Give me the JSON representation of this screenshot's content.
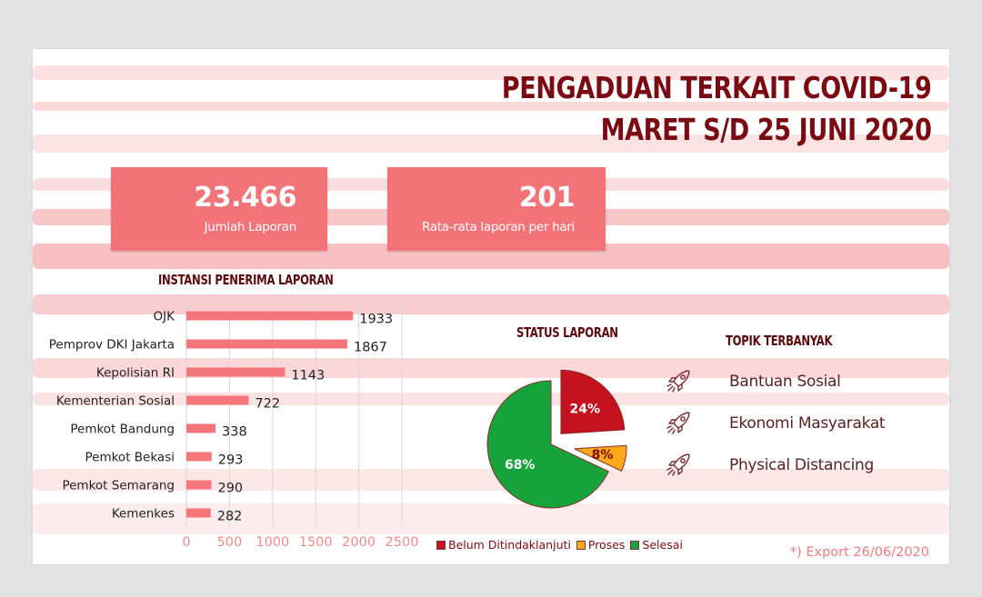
{
  "title": {
    "line1": "PENGADUAN TERKAIT COVID-19",
    "line2": "MARET S/D 25 JUNI 2020"
  },
  "kpis": [
    {
      "value": "23.466",
      "label": "Jumlah Laporan"
    },
    {
      "value": "201",
      "label": "Rata-rata laporan per hari"
    }
  ],
  "colors": {
    "title": "#7a0b12",
    "kpi_bg": "#f27479",
    "bar": "#f4757a",
    "belum": "#c5121f",
    "proses": "#fba81b",
    "selesai": "#16a33b"
  },
  "sections": {
    "instansi": "INSTANSI PENERIMA LAPORAN",
    "status": "STATUS LAPORAN",
    "topik": "TOPIK TERBANYAK"
  },
  "topics": [
    {
      "label": "Bantuan Sosial",
      "icon": "rocket-icon"
    },
    {
      "label": "Ekonomi Masyarakat",
      "icon": "rocket-icon"
    },
    {
      "label": "Physical Distancing",
      "icon": "rocket-icon"
    }
  ],
  "footnote": "*) Export 26/06/2020",
  "chart_data": [
    {
      "type": "bar",
      "orientation": "horizontal",
      "title": "INSTANSI PENERIMA LAPORAN",
      "categories": [
        "OJK",
        "Pemprov DKI Jakarta",
        "Kepolisian RI",
        "Kementerian Sosial",
        "Pemkot Bandung",
        "Pemkot Bekasi",
        "Pemkot Semarang",
        "Kemenkes"
      ],
      "values": [
        1933,
        1867,
        1143,
        722,
        338,
        293,
        290,
        282
      ],
      "xlim": [
        0,
        2500
      ],
      "xticks": [
        0,
        500,
        1000,
        1500,
        2000,
        2500
      ],
      "grid": true
    },
    {
      "type": "pie",
      "title": "STATUS LAPORAN",
      "labels": [
        "Belum Ditindaklanjuti",
        "Proses",
        "Selesai"
      ],
      "values": [
        24,
        8,
        68
      ],
      "value_labels": [
        "24%",
        "8%",
        "68%"
      ],
      "exploded": [
        "Belum Ditindaklanjuti",
        "Proses"
      ],
      "legend": "bottom"
    }
  ]
}
